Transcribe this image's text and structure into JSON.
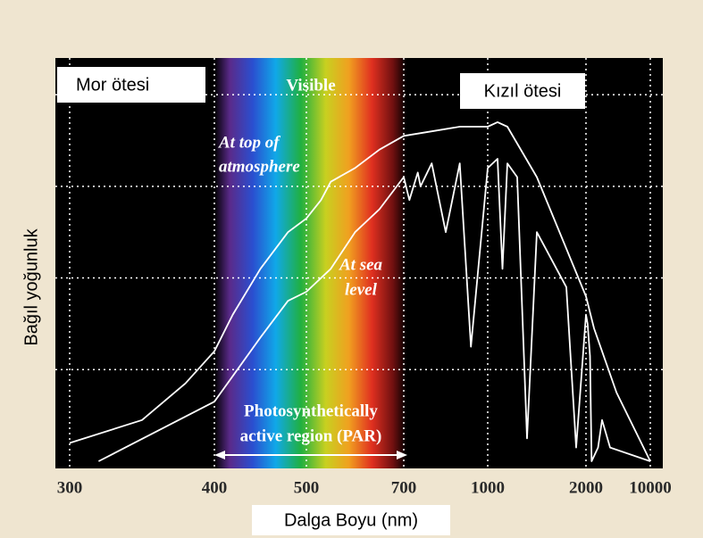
{
  "chart_data": {
    "type": "line",
    "x_label": "Dalga Boyu (nm)",
    "y_label": "Bağıl yoğunluk",
    "regions": [
      "Mor ötesi",
      "Visible",
      "Kızıl ötesi"
    ],
    "par_label": [
      "Photosynthetically",
      "active region (PAR)"
    ],
    "xlim": [
      300,
      10000
    ],
    "xticks": [
      300,
      400,
      500,
      700,
      1000,
      2000,
      10000
    ],
    "ylim": [
      0,
      88
    ],
    "yticks": [
      20,
      40,
      60,
      80
    ],
    "grid": true,
    "series": [
      {
        "name": [
          "At top of",
          "atmosphere"
        ],
        "color": "#ffffff",
        "x": [
          300,
          350,
          380,
          400,
          420,
          450,
          480,
          500,
          530,
          550,
          600,
          650,
          700,
          800,
          900,
          1000,
          1100,
          1200,
          1500,
          2000,
          3000,
          5800,
          10000
        ],
        "values": [
          4,
          9,
          17,
          24,
          32,
          42,
          50,
          53,
          57,
          61,
          64,
          68,
          71,
          72,
          73,
          73,
          74,
          73,
          62,
          36,
          29,
          15,
          0
        ]
      },
      {
        "name": [
          "At sea",
          "level"
        ],
        "color": "#ffffff",
        "x": [
          320,
          400,
          450,
          480,
          500,
          550,
          600,
          650,
          700,
          720,
          750,
          760,
          800,
          850,
          900,
          940,
          1000,
          1100,
          1150,
          1200,
          1300,
          1400,
          1500,
          1600,
          1800,
          1900,
          2000,
          2200,
          2500,
          2700,
          3500,
          4000,
          5000,
          10000
        ],
        "values": [
          0,
          13,
          27,
          35,
          37,
          42,
          50,
          55,
          62,
          57,
          63,
          60,
          65,
          50,
          65,
          25,
          64,
          66,
          42,
          65,
          62,
          5,
          50,
          46,
          38,
          3,
          32,
          30,
          23,
          0,
          3,
          9,
          3,
          0
        ]
      }
    ]
  }
}
